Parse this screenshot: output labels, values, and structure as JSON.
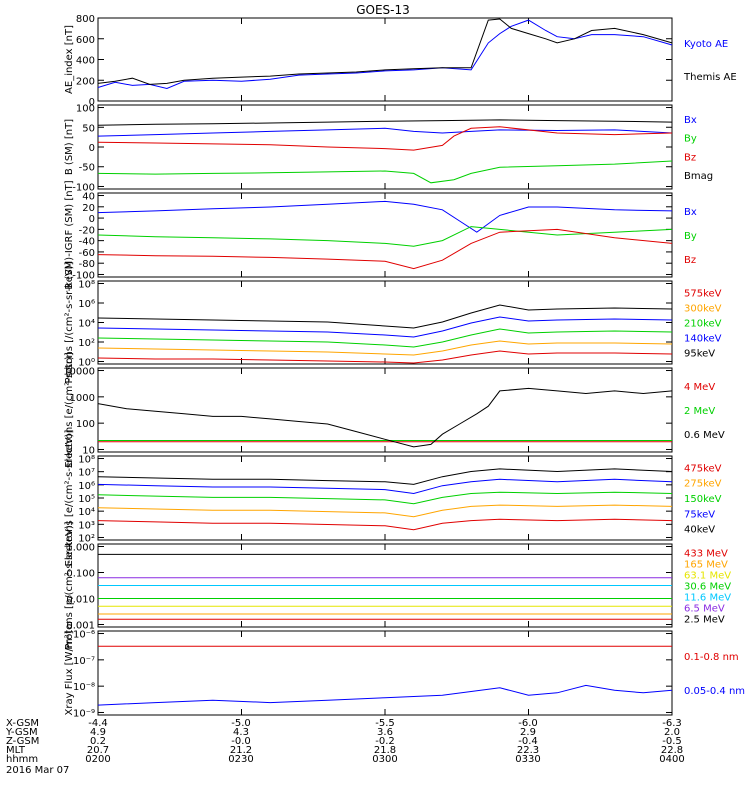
{
  "title": "GOES-13",
  "footer": {
    "date": "2016 Mar 07",
    "row_labels": [
      "X-GSM",
      "Y-GSM",
      "Z-GSM",
      "MLT",
      "hhmm"
    ],
    "columns": [
      [
        "-4.4",
        "4.9",
        "0.2",
        "20.7",
        "0200"
      ],
      [
        "-5.0",
        "4.3",
        "-0.0",
        "21.2",
        "0230"
      ],
      [
        "-5.5",
        "3.6",
        "-0.2",
        "21.8",
        "0300"
      ],
      [
        "-6.0",
        "2.9",
        "-0.4",
        "22.3",
        "0330"
      ],
      [
        "-6.3",
        "2.0",
        "-0.5",
        "22.8",
        "0400"
      ]
    ]
  },
  "colors": {
    "black": "#000000",
    "blue": "#0000ff",
    "green": "#00d000",
    "red": "#e00000",
    "orange": "#ffa500",
    "cyan": "#00c8ff",
    "purple": "#8a2be2",
    "yellow": "#e6e600"
  },
  "chart_data": [
    {
      "type": "line",
      "ylabel": "AE_index [nT]",
      "scale": "linear",
      "ylim": [
        0,
        800
      ],
      "yticks": [
        "0",
        "200",
        "400",
        "600",
        "800"
      ],
      "series": [
        {
          "name": "Kyoto AE",
          "color": "blue",
          "x": [
            0,
            3,
            6,
            9,
            12,
            15,
            20,
            25,
            30,
            35,
            40,
            45,
            50,
            55,
            60,
            65,
            68,
            70,
            72,
            75,
            78,
            80,
            83,
            86,
            90,
            95,
            100
          ],
          "y": [
            130,
            180,
            150,
            160,
            120,
            190,
            200,
            190,
            210,
            250,
            260,
            270,
            290,
            300,
            320,
            300,
            560,
            650,
            720,
            780,
            680,
            620,
            600,
            640,
            640,
            620,
            540
          ]
        },
        {
          "name": "Themis AE",
          "color": "black",
          "x": [
            0,
            3,
            6,
            9,
            12,
            15,
            20,
            25,
            30,
            35,
            40,
            45,
            50,
            55,
            60,
            65,
            68,
            70,
            72,
            75,
            78,
            80,
            83,
            86,
            90,
            95,
            100
          ],
          "y": [
            170,
            190,
            220,
            160,
            170,
            200,
            220,
            230,
            240,
            260,
            270,
            280,
            300,
            310,
            320,
            320,
            780,
            790,
            700,
            650,
            600,
            560,
            600,
            680,
            700,
            640,
            560
          ]
        }
      ]
    },
    {
      "type": "line",
      "ylabel": "B (SM) [nT]",
      "scale": "linear",
      "ylim": [
        -120,
        150
      ],
      "yticks": [
        "-100",
        "-50",
        "0",
        "50",
        "100"
      ],
      "series": [
        {
          "name": "Bx",
          "color": "blue",
          "x": [
            0,
            10,
            20,
            30,
            40,
            50,
            55,
            60,
            65,
            70,
            80,
            90,
            100
          ],
          "y": [
            50,
            55,
            60,
            65,
            70,
            75,
            65,
            60,
            65,
            70,
            68,
            70,
            60
          ]
        },
        {
          "name": "By",
          "color": "green",
          "x": [
            0,
            10,
            20,
            30,
            40,
            50,
            55,
            58,
            62,
            65,
            70,
            80,
            90,
            100
          ],
          "y": [
            -70,
            -72,
            -70,
            -68,
            -65,
            -62,
            -70,
            -100,
            -90,
            -70,
            -50,
            -45,
            -40,
            -30
          ]
        },
        {
          "name": "Bz",
          "color": "red",
          "x": [
            0,
            10,
            20,
            30,
            40,
            50,
            55,
            60,
            62,
            65,
            70,
            80,
            90,
            100
          ],
          "y": [
            30,
            28,
            25,
            22,
            15,
            10,
            5,
            20,
            50,
            75,
            80,
            60,
            55,
            60
          ]
        },
        {
          "name": "Bmag",
          "color": "black",
          "x": [
            0,
            10,
            20,
            30,
            40,
            50,
            60,
            70,
            80,
            90,
            100
          ],
          "y": [
            85,
            88,
            90,
            92,
            95,
            98,
            100,
            102,
            100,
            98,
            95
          ]
        }
      ]
    },
    {
      "type": "line",
      "ylabel": "B (SM)-IGRF (SM) [nT]",
      "scale": "linear",
      "ylim": [
        -100,
        50
      ],
      "yticks": [
        "-100",
        "-80",
        "-60",
        "-40",
        "-20",
        "0",
        "20",
        "40"
      ],
      "series": [
        {
          "name": "Bx",
          "color": "blue",
          "x": [
            0,
            10,
            20,
            30,
            40,
            50,
            55,
            60,
            63,
            66,
            70,
            75,
            80,
            90,
            100
          ],
          "y": [
            15,
            18,
            22,
            25,
            30,
            35,
            30,
            20,
            0,
            -20,
            10,
            25,
            25,
            20,
            18
          ]
        },
        {
          "name": "By",
          "color": "green",
          "x": [
            0,
            10,
            20,
            30,
            40,
            50,
            55,
            60,
            65,
            70,
            80,
            90,
            100
          ],
          "y": [
            -25,
            -28,
            -30,
            -32,
            -35,
            -40,
            -45,
            -35,
            -10,
            -15,
            -25,
            -20,
            -15
          ]
        },
        {
          "name": "Bz",
          "color": "red",
          "x": [
            0,
            10,
            20,
            30,
            40,
            50,
            55,
            60,
            65,
            70,
            80,
            90,
            100
          ],
          "y": [
            -60,
            -62,
            -63,
            -65,
            -68,
            -72,
            -85,
            -70,
            -40,
            -20,
            -15,
            -30,
            -40
          ]
        }
      ]
    },
    {
      "type": "line",
      "ylabel": "Protons [/(cm²-s-sr-keV)]",
      "scale": "log",
      "ylim_log10": [
        -0.3,
        8
      ],
      "yticks": [
        "10⁰",
        "10²",
        "10⁴",
        "10⁶",
        "10⁸"
      ],
      "series": [
        {
          "name": "575keV",
          "color": "red",
          "x": [
            0,
            10,
            20,
            30,
            40,
            50,
            55,
            60,
            65,
            70,
            75,
            80,
            90,
            100
          ],
          "y_log10": [
            0.3,
            0.2,
            0.2,
            0.1,
            0.0,
            -0.1,
            -0.2,
            0.1,
            0.6,
            1.0,
            0.7,
            0.8,
            0.8,
            0.7
          ]
        },
        {
          "name": "300keV",
          "color": "orange",
          "x": [
            0,
            10,
            20,
            30,
            40,
            50,
            55,
            60,
            65,
            70,
            75,
            80,
            90,
            100
          ],
          "y_log10": [
            1.3,
            1.2,
            1.1,
            1.0,
            0.9,
            0.7,
            0.6,
            1.0,
            1.6,
            2.0,
            1.7,
            1.8,
            1.8,
            1.7
          ]
        },
        {
          "name": "210keV",
          "color": "green",
          "x": [
            0,
            10,
            20,
            30,
            40,
            50,
            55,
            60,
            65,
            70,
            75,
            80,
            90,
            100
          ],
          "y_log10": [
            2.3,
            2.2,
            2.1,
            2.0,
            1.9,
            1.6,
            1.4,
            1.9,
            2.6,
            3.2,
            2.8,
            2.9,
            3.0,
            2.9
          ]
        },
        {
          "name": "140keV",
          "color": "blue",
          "x": [
            0,
            10,
            20,
            30,
            40,
            50,
            55,
            60,
            65,
            70,
            75,
            80,
            90,
            100
          ],
          "y_log10": [
            3.3,
            3.2,
            3.1,
            3.0,
            2.9,
            2.6,
            2.4,
            3.0,
            3.8,
            4.4,
            4.0,
            4.1,
            4.2,
            4.1
          ]
        },
        {
          "name": "95keV",
          "color": "black",
          "x": [
            0,
            10,
            20,
            30,
            40,
            50,
            55,
            60,
            65,
            70,
            75,
            80,
            90,
            100
          ],
          "y_log10": [
            4.3,
            4.2,
            4.1,
            4.0,
            3.9,
            3.5,
            3.3,
            3.9,
            4.8,
            5.6,
            5.1,
            5.2,
            5.3,
            5.2
          ]
        }
      ]
    },
    {
      "type": "line",
      "ylabel": "Electrons [e/(cm²-s-sr)]",
      "scale": "log",
      "ylim_log10": [
        0.7,
        4
      ],
      "yticks": [
        "10",
        "100",
        "1000",
        "10000"
      ],
      "series": [
        {
          "name": "4 MeV",
          "color": "red",
          "x": [
            0,
            20,
            40,
            60,
            80,
            100
          ],
          "y_log10": [
            1.1,
            1.1,
            1.1,
            1.1,
            1.1,
            1.1
          ]
        },
        {
          "name": "2 MeV",
          "color": "green",
          "x": [
            0,
            20,
            40,
            60,
            80,
            100
          ],
          "y_log10": [
            1.15,
            1.15,
            1.15,
            1.15,
            1.15,
            1.15
          ]
        },
        {
          "name": "0.6 MeV",
          "color": "black",
          "x": [
            0,
            5,
            10,
            15,
            20,
            25,
            30,
            35,
            40,
            45,
            50,
            55,
            58,
            60,
            63,
            66,
            68,
            70,
            75,
            80,
            85,
            90,
            95,
            100
          ],
          "y_log10": [
            2.6,
            2.4,
            2.3,
            2.2,
            2.1,
            2.1,
            2.0,
            1.9,
            1.8,
            1.5,
            1.2,
            0.9,
            1.0,
            1.4,
            1.8,
            2.2,
            2.5,
            3.1,
            3.2,
            3.1,
            3.0,
            3.1,
            3.0,
            3.1
          ]
        }
      ]
    },
    {
      "type": "line",
      "ylabel": "Electrons [e/(cm²-s-sr-keV)]",
      "scale": "log",
      "ylim_log10": [
        1.5,
        8
      ],
      "yticks": [
        "10²",
        "10³",
        "10⁴",
        "10⁵",
        "10⁶",
        "10⁷",
        "10⁸"
      ],
      "series": [
        {
          "name": "475keV",
          "color": "red",
          "x": [
            0,
            10,
            20,
            30,
            40,
            50,
            55,
            60,
            65,
            70,
            80,
            90,
            100
          ],
          "y_log10": [
            3.0,
            2.9,
            2.8,
            2.8,
            2.7,
            2.6,
            2.3,
            2.8,
            3.0,
            3.1,
            3.0,
            3.1,
            3.0
          ]
        },
        {
          "name": "275keV",
          "color": "orange",
          "x": [
            0,
            10,
            20,
            30,
            40,
            50,
            55,
            60,
            65,
            70,
            80,
            90,
            100
          ],
          "y_log10": [
            4.0,
            3.9,
            3.8,
            3.8,
            3.7,
            3.6,
            3.3,
            3.8,
            4.1,
            4.2,
            4.1,
            4.2,
            4.1
          ]
        },
        {
          "name": "150keV",
          "color": "green",
          "x": [
            0,
            10,
            20,
            30,
            40,
            50,
            55,
            60,
            65,
            70,
            80,
            90,
            100
          ],
          "y_log10": [
            5.0,
            4.9,
            4.8,
            4.8,
            4.7,
            4.6,
            4.3,
            4.8,
            5.1,
            5.2,
            5.1,
            5.2,
            5.1
          ]
        },
        {
          "name": "75keV",
          "color": "blue",
          "x": [
            0,
            10,
            20,
            30,
            40,
            50,
            55,
            60,
            65,
            70,
            80,
            90,
            100
          ],
          "y_log10": [
            5.8,
            5.7,
            5.6,
            5.6,
            5.5,
            5.4,
            5.1,
            5.7,
            6.0,
            6.2,
            6.0,
            6.2,
            6.0
          ]
        },
        {
          "name": "40keV",
          "color": "black",
          "x": [
            0,
            10,
            20,
            30,
            40,
            50,
            55,
            60,
            65,
            70,
            80,
            90,
            100
          ],
          "y_log10": [
            6.4,
            6.3,
            6.2,
            6.2,
            6.1,
            6.0,
            5.8,
            6.4,
            6.8,
            7.0,
            6.8,
            7.0,
            6.8
          ]
        }
      ]
    },
    {
      "type": "line",
      "ylabel": "Protons [p/(cm²-s-sr-keV)]",
      "scale": "log",
      "ylim_log10": [
        -3.1,
        0.1
      ],
      "yticks": [
        "0.001",
        "0.010",
        "0.100",
        "1.000"
      ],
      "series": [
        {
          "name": "433 MeV",
          "color": "red",
          "x": [
            0,
            20,
            40,
            60,
            80,
            100
          ],
          "y_log10": [
            -2.8,
            -2.8,
            -2.8,
            -2.8,
            -2.8,
            -2.8
          ]
        },
        {
          "name": "165 MeV",
          "color": "orange",
          "x": [
            0,
            20,
            40,
            60,
            80,
            100
          ],
          "y_log10": [
            -2.6,
            -2.6,
            -2.6,
            -2.6,
            -2.6,
            -2.6
          ]
        },
        {
          "name": "63.1 MeV",
          "color": "yellow",
          "x": [
            0,
            20,
            40,
            60,
            80,
            100
          ],
          "y_log10": [
            -2.3,
            -2.3,
            -2.3,
            -2.3,
            -2.3,
            -2.3
          ]
        },
        {
          "name": "30.6 MeV",
          "color": "green",
          "x": [
            0,
            20,
            40,
            60,
            80,
            100
          ],
          "y_log10": [
            -2.0,
            -2.0,
            -2.0,
            -2.0,
            -2.0,
            -2.0
          ]
        },
        {
          "name": "11.6 MeV",
          "color": "cyan",
          "x": [
            0,
            20,
            40,
            60,
            80,
            100
          ],
          "y_log10": [
            -1.5,
            -1.5,
            -1.5,
            -1.5,
            -1.5,
            -1.5
          ]
        },
        {
          "name": "6.5 MeV",
          "color": "purple",
          "x": [
            0,
            20,
            40,
            60,
            80,
            100
          ],
          "y_log10": [
            -1.2,
            -1.2,
            -1.2,
            -1.2,
            -1.2,
            -1.2
          ]
        },
        {
          "name": "2.5 MeV",
          "color": "black",
          "x": [
            0,
            20,
            40,
            60,
            80,
            100
          ],
          "y_log10": [
            -0.3,
            -0.3,
            -0.3,
            -0.3,
            -0.3,
            -0.3
          ]
        }
      ]
    },
    {
      "type": "line",
      "ylabel": "Xray Flux [W/m²]",
      "scale": "log",
      "ylim_log10": [
        -9.3,
        -5.9
      ],
      "yticks": [
        "10⁻⁹",
        "10⁻⁸",
        "10⁻⁷",
        "10⁻⁶"
      ],
      "series": [
        {
          "name": "0.1-0.8 nm",
          "color": "red",
          "x": [
            0,
            100
          ],
          "y_log10": [
            -6.52,
            -6.52
          ]
        },
        {
          "name": "0.05-0.4 nm",
          "color": "blue",
          "x": [
            0,
            10,
            20,
            30,
            40,
            50,
            60,
            70,
            75,
            80,
            85,
            90,
            95,
            100
          ],
          "y_log10": [
            -8.9,
            -8.8,
            -8.7,
            -8.8,
            -8.7,
            -8.6,
            -8.5,
            -8.2,
            -8.5,
            -8.4,
            -8.1,
            -8.3,
            -8.4,
            -8.3
          ]
        }
      ]
    }
  ]
}
